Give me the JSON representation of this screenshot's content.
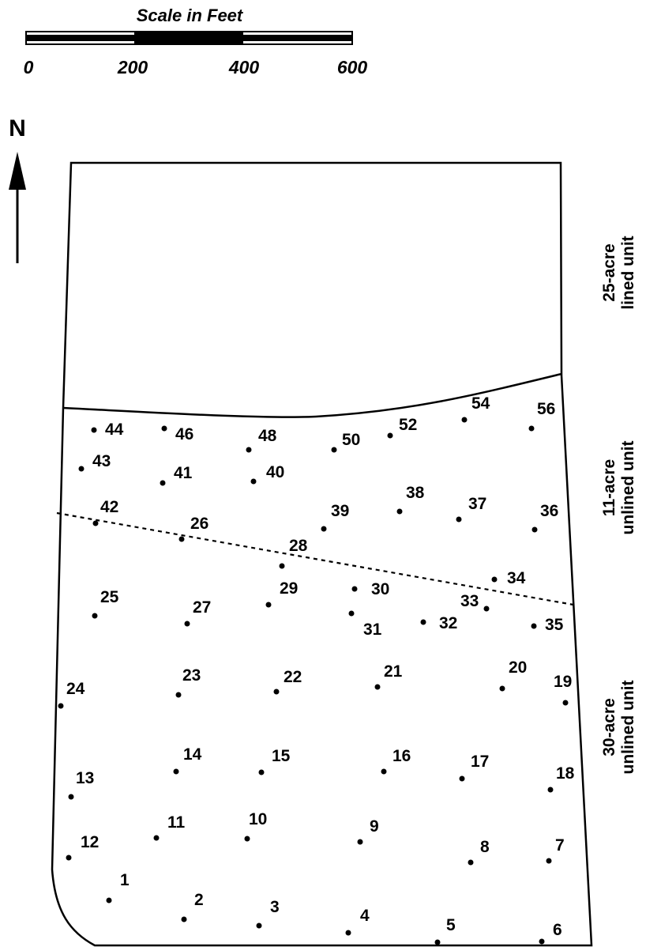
{
  "scale": {
    "title": "Scale in Feet",
    "ticks": [
      "0",
      "200",
      "400",
      "600"
    ]
  },
  "north": {
    "label": "N",
    "icon": "north-arrow-icon"
  },
  "units": {
    "lined": {
      "line1": "25-acre",
      "line2": "lined unit"
    },
    "unlined11": {
      "line1": "11-acre",
      "line2": "unlined unit"
    },
    "unlined30": {
      "line1": "30-acre",
      "line2": "unlined unit"
    }
  },
  "points": [
    {
      "id": "1"
    },
    {
      "id": "2"
    },
    {
      "id": "3"
    },
    {
      "id": "4"
    },
    {
      "id": "5"
    },
    {
      "id": "6"
    },
    {
      "id": "7"
    },
    {
      "id": "8"
    },
    {
      "id": "9"
    },
    {
      "id": "10"
    },
    {
      "id": "11"
    },
    {
      "id": "12"
    },
    {
      "id": "13"
    },
    {
      "id": "14"
    },
    {
      "id": "15"
    },
    {
      "id": "16"
    },
    {
      "id": "17"
    },
    {
      "id": "18"
    },
    {
      "id": "19"
    },
    {
      "id": "20"
    },
    {
      "id": "21"
    },
    {
      "id": "22"
    },
    {
      "id": "23"
    },
    {
      "id": "24"
    },
    {
      "id": "25"
    },
    {
      "id": "26"
    },
    {
      "id": "27"
    },
    {
      "id": "28"
    },
    {
      "id": "29"
    },
    {
      "id": "30"
    },
    {
      "id": "31"
    },
    {
      "id": "32"
    },
    {
      "id": "33"
    },
    {
      "id": "34"
    },
    {
      "id": "35"
    },
    {
      "id": "36"
    },
    {
      "id": "37"
    },
    {
      "id": "38"
    },
    {
      "id": "39"
    },
    {
      "id": "40"
    },
    {
      "id": "41"
    },
    {
      "id": "42"
    },
    {
      "id": "43"
    },
    {
      "id": "44"
    },
    {
      "id": "46"
    },
    {
      "id": "48"
    },
    {
      "id": "50"
    },
    {
      "id": "52"
    },
    {
      "id": "54"
    },
    {
      "id": "56"
    }
  ]
}
